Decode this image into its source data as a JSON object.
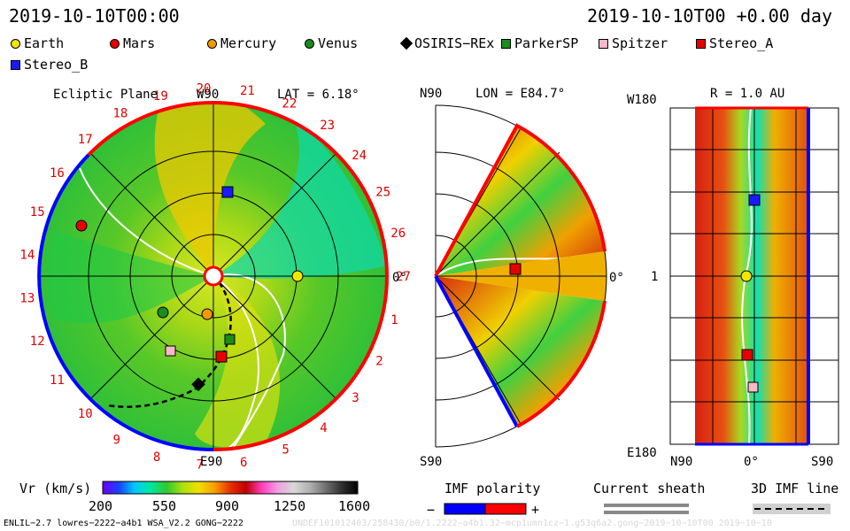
{
  "header": {
    "date_left": "2019-10-10T00:00",
    "date_right": "2019-10-10T00 +0.00 day"
  },
  "legend": {
    "items": [
      {
        "label": "Earth",
        "color": "#f2e600",
        "shape": "circle"
      },
      {
        "label": "Mars",
        "color": "#e60000",
        "shape": "circle"
      },
      {
        "label": "Mercury",
        "color": "#f29900",
        "shape": "circle"
      },
      {
        "label": "Venus",
        "color": "#1a8c1a",
        "shape": "circle"
      },
      {
        "label": "OSIRIS−REx",
        "color": "#000000",
        "shape": "diamond"
      },
      {
        "label": "ParkerSP",
        "color": "#1a8c1a",
        "shape": "square"
      },
      {
        "label": "Spitzer",
        "color": "#f7b8c8",
        "shape": "square"
      },
      {
        "label": "Stereo_A",
        "color": "#e60000",
        "shape": "square"
      },
      {
        "label": "Stereo_B",
        "color": "#1a1aff",
        "shape": "square"
      }
    ]
  },
  "ecliptic": {
    "title": "Ecliptic Plane",
    "top_label": "W90",
    "bottom_label": "E90",
    "right_label": "0°",
    "lat_label": "LAT = 6.18°",
    "numbers": [
      "1",
      "2",
      "3",
      "4",
      "5",
      "6",
      "7",
      "8",
      "9",
      "10",
      "11",
      "12",
      "13",
      "14",
      "15",
      "16",
      "17",
      "18",
      "19",
      "20",
      "21",
      "22",
      "23",
      "24",
      "25",
      "26",
      "27"
    ]
  },
  "meridional": {
    "lon_label": "LON = E84.7°",
    "top_label": "N90",
    "bottom_label": "S90",
    "right_label": "0°"
  },
  "radial": {
    "r_label": "R = 1.0 AU",
    "left_top": "W180",
    "left_mid": "1",
    "left_bottom": "E180",
    "bottom_left": "N90",
    "bottom_mid": "0°",
    "bottom_right": "S90"
  },
  "colorbar": {
    "title": "Vr (km/s)",
    "ticks": [
      "200",
      "550",
      "900",
      "1250",
      "1600"
    ],
    "stops": [
      "#6a00ff",
      "#1a40ff",
      "#00c8ff",
      "#00e8a0",
      "#30c830",
      "#a8e010",
      "#f0e000",
      "#f8a000",
      "#e83000",
      "#c00000",
      "#ff40c0",
      "#f0a0e0",
      "#d8d8d8",
      "#b0b0b0",
      "#707070",
      "#303030",
      "#000000"
    ]
  },
  "imf": {
    "polarity_title": "IMF polarity",
    "minus": "−",
    "plus": "+",
    "sheath_title": "Current sheath",
    "line_title": "3D IMF line"
  },
  "footer": {
    "left": "ENLIL−2.7 lowres−2222−a4b1 WSA_V2.2 GONG−2222",
    "right": "UNDEF101012403/258430/b0/1.2222−a4b1.32−mcp1umn1cz−1.g53q6a2.gong−2019−10−10T00   2019−10−10"
  },
  "colors": {
    "imf_negative": "#0000ff",
    "imf_positive": "#ff0000"
  }
}
